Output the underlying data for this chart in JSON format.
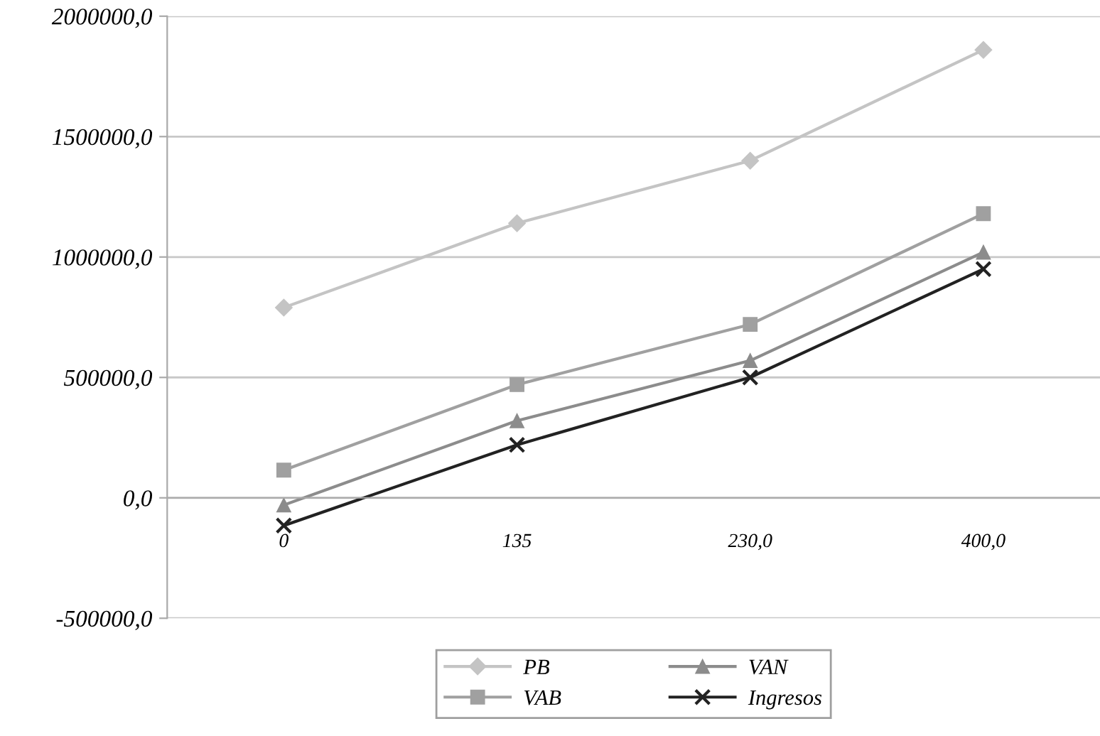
{
  "chart_data": {
    "type": "line",
    "categories": [
      "0",
      "135",
      "230,0",
      "400,0"
    ],
    "series": [
      {
        "name": "PB",
        "color": "#c4c4c4",
        "marker": "diamond",
        "values": [
          790000,
          1140000,
          1400000,
          1860000
        ]
      },
      {
        "name": "VAB",
        "color": "#a0a0a0",
        "marker": "square",
        "values": [
          115000,
          470000,
          720000,
          1180000
        ]
      },
      {
        "name": "VAN",
        "color": "#8c8c8c",
        "marker": "triangle",
        "values": [
          -30000,
          320000,
          570000,
          1020000
        ]
      },
      {
        "name": "Ingresos",
        "color": "#222222",
        "marker": "cross",
        "values": [
          -115000,
          220000,
          500000,
          950000
        ]
      }
    ],
    "ylim": [
      -500000,
      2000000
    ],
    "yticks": [
      {
        "value": -500000,
        "label": "-500000,0"
      },
      {
        "value": 0,
        "label": "0,0"
      },
      {
        "value": 500000,
        "label": "500000,0"
      },
      {
        "value": 1000000,
        "label": "1000000,0"
      },
      {
        "value": 1500000,
        "label": "1500000,0"
      },
      {
        "value": 2000000,
        "label": "2000000,0"
      }
    ],
    "grid": "y",
    "legend": "bottom",
    "line_style": "solid"
  }
}
